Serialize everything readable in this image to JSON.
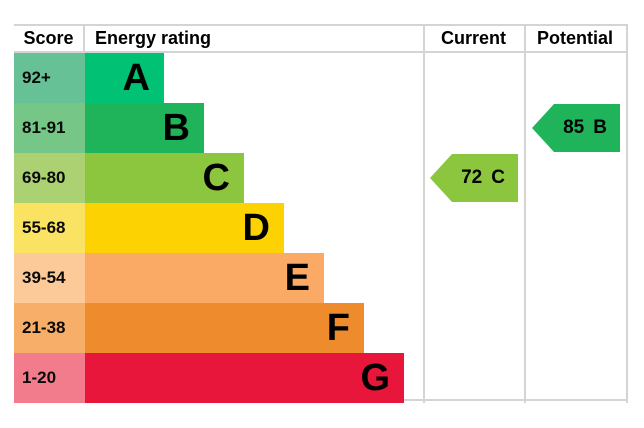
{
  "header": {
    "score": "Score",
    "energy_rating": "Energy rating",
    "current": "Current",
    "potential": "Potential"
  },
  "chart_data": {
    "type": "bar",
    "subtype": "energy-efficiency-rating",
    "bands": [
      {
        "letter": "A",
        "score_range": "92+",
        "bar_color": "#00c174",
        "score_color": "#66c296"
      },
      {
        "letter": "B",
        "score_range": "81-91",
        "bar_color": "#1fb45a",
        "score_color": "#75c687"
      },
      {
        "letter": "C",
        "score_range": "69-80",
        "bar_color": "#8cc63f",
        "score_color": "#abd173"
      },
      {
        "letter": "D",
        "score_range": "55-68",
        "bar_color": "#fcd202",
        "score_color": "#fae262"
      },
      {
        "letter": "E",
        "score_range": "39-54",
        "bar_color": "#fbaa65",
        "score_color": "#fcca98"
      },
      {
        "letter": "F",
        "score_range": "21-38",
        "bar_color": "#ee8b2d",
        "score_color": "#f6ae69"
      },
      {
        "letter": "G",
        "score_range": "1-20",
        "bar_color": "#e9163c",
        "score_color": "#f27b8c"
      }
    ],
    "markers": [
      {
        "column": "current",
        "value": "72",
        "letter": "C",
        "color": "#8cc63f"
      },
      {
        "column": "potential",
        "value": "85",
        "letter": "B",
        "color": "#1fb45a"
      }
    ]
  }
}
